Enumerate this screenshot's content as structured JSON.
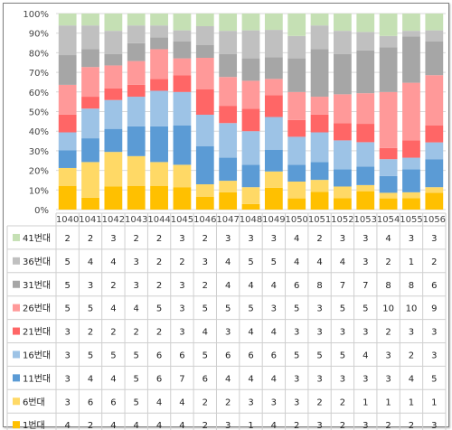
{
  "chart_data": {
    "type": "bar",
    "stacked": "percent",
    "categories": [
      "1040",
      "1041",
      "1042",
      "1043",
      "1044",
      "1045",
      "1046",
      "1047",
      "1048",
      "1049",
      "1050",
      "1051",
      "1052",
      "1053",
      "1054",
      "1055",
      "1056"
    ],
    "y_ticks": [
      "0%",
      "10%",
      "20%",
      "30%",
      "40%",
      "50%",
      "60%",
      "70%",
      "80%",
      "90%",
      "100%"
    ],
    "ylim": [
      0,
      100
    ],
    "grid": true,
    "legend_position": "data-table-left",
    "series": [
      {
        "name": "1번대",
        "color": "#FFC000",
        "values": [
          4,
          2,
          4,
          4,
          4,
          4,
          2,
          3,
          1,
          4,
          2,
          3,
          2,
          3,
          2,
          2,
          3
        ]
      },
      {
        "name": "6번대",
        "color": "#FFD966",
        "values": [
          3,
          6,
          6,
          5,
          4,
          4,
          2,
          2,
          3,
          3,
          3,
          2,
          2,
          1,
          1,
          1,
          1
        ]
      },
      {
        "name": "11번대",
        "color": "#5B9BD5",
        "values": [
          3,
          4,
          4,
          5,
          6,
          7,
          6,
          4,
          4,
          4,
          3,
          3,
          3,
          3,
          3,
          4,
          5
        ]
      },
      {
        "name": "16번대",
        "color": "#9DC3E6",
        "values": [
          3,
          5,
          5,
          5,
          6,
          6,
          5,
          6,
          6,
          6,
          5,
          5,
          5,
          4,
          3,
          2,
          3
        ]
      },
      {
        "name": "21번대",
        "color": "#FF6666",
        "values": [
          3,
          2,
          2,
          2,
          2,
          3,
          4,
          3,
          4,
          4,
          3,
          3,
          3,
          3,
          2,
          3,
          3
        ]
      },
      {
        "name": "26번대",
        "color": "#FF9999",
        "values": [
          5,
          5,
          4,
          4,
          5,
          3,
          5,
          5,
          5,
          3,
          5,
          3,
          5,
          5,
          10,
          10,
          9
        ]
      },
      {
        "name": "31번대",
        "color": "#A6A6A6",
        "values": [
          5,
          3,
          2,
          3,
          2,
          3,
          2,
          4,
          4,
          4,
          6,
          8,
          7,
          7,
          8,
          8,
          6
        ]
      },
      {
        "name": "36번대",
        "color": "#C0C0C0",
        "values": [
          5,
          4,
          4,
          3,
          2,
          2,
          3,
          4,
          5,
          5,
          4,
          4,
          4,
          3,
          2,
          1,
          2
        ]
      },
      {
        "name": "41번대",
        "color": "#C5E0B4",
        "values": [
          2,
          2,
          3,
          2,
          2,
          3,
          2,
          3,
          3,
          3,
          4,
          2,
          3,
          3,
          4,
          3,
          3
        ]
      }
    ],
    "legend_order": [
      "41번대",
      "36번대",
      "31번대",
      "26번대",
      "21번대",
      "16번대",
      "11번대",
      "6번대",
      "1번대"
    ]
  }
}
